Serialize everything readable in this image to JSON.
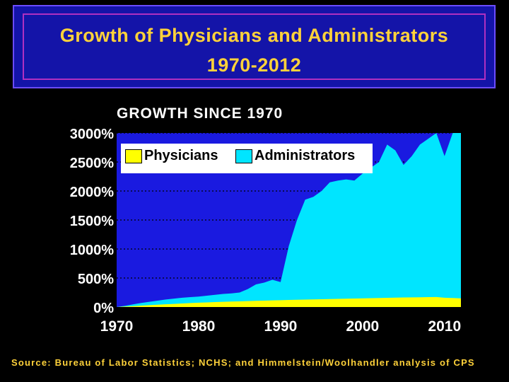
{
  "title": {
    "line1": "Growth of Physicians and Administrators",
    "line2": "1970-2012"
  },
  "source": "Source: Bureau of Labor Statistics; NCHS; and Himmelstein/Woolhandler analysis of CPS",
  "colors": {
    "background": "#000000",
    "plot_background": "#1a1ae0",
    "physicians": "#ffff00",
    "administrators": "#00e5ff",
    "title_text": "#ffd23a",
    "title_box": "#1414a8"
  },
  "chart_data": {
    "type": "area",
    "title": "GROWTH SINCE 1970",
    "xlabel": "",
    "ylabel": "",
    "xlim": [
      1970,
      2012
    ],
    "ylim": [
      0,
      3000
    ],
    "x_ticks": [
      1970,
      1980,
      1990,
      2000,
      2010
    ],
    "x_tick_labels": [
      "1970",
      "1980",
      "1990",
      "2000",
      "2010"
    ],
    "y_ticks": [
      0,
      500,
      1000,
      1500,
      2000,
      2500,
      3000
    ],
    "y_tick_labels": [
      "0%",
      "500%",
      "1000%",
      "1500%",
      "2000%",
      "2500%",
      "3000%"
    ],
    "grid": true,
    "legend_position": "top-left",
    "x": [
      1970,
      1971,
      1972,
      1973,
      1974,
      1975,
      1976,
      1977,
      1978,
      1979,
      1980,
      1981,
      1982,
      1983,
      1984,
      1985,
      1986,
      1987,
      1988,
      1989,
      1990,
      1991,
      1992,
      1993,
      1994,
      1995,
      1996,
      1997,
      1998,
      1999,
      2000,
      2001,
      2002,
      2003,
      2004,
      2005,
      2006,
      2007,
      2008,
      2009,
      2010,
      2011,
      2012
    ],
    "series": [
      {
        "name": "Physicians",
        "values": [
          0,
          8,
          16,
          24,
          32,
          40,
          47,
          54,
          61,
          68,
          75,
          80,
          85,
          90,
          94,
          98,
          102,
          106,
          110,
          114,
          118,
          122,
          125,
          128,
          131,
          134,
          137,
          140,
          143,
          146,
          149,
          152,
          155,
          158,
          161,
          164,
          166,
          168,
          170,
          172,
          160,
          155,
          150
        ]
      },
      {
        "name": "Administrators",
        "values": [
          0,
          20,
          45,
          70,
          90,
          110,
          130,
          145,
          160,
          170,
          180,
          195,
          210,
          225,
          235,
          250,
          310,
          390,
          420,
          470,
          430,
          1050,
          1500,
          1850,
          1900,
          2000,
          2150,
          2180,
          2200,
          2180,
          2300,
          2400,
          2500,
          2800,
          2700,
          2450,
          2600,
          2800,
          2900,
          3000,
          2600,
          3000,
          3000
        ]
      }
    ]
  }
}
